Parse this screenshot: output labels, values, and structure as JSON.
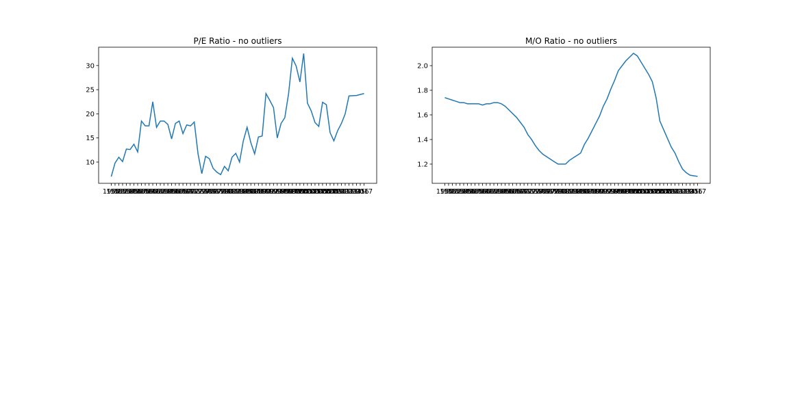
{
  "chart_data": [
    {
      "type": "line",
      "title": "P/E Ratio - no outliers",
      "color": "#1f77b4",
      "categories": [
        "1950",
        "1951",
        "1952",
        "1953",
        "1954",
        "1955",
        "1956",
        "1957",
        "1958",
        "1959",
        "1960",
        "1961",
        "1962",
        "1963",
        "1964",
        "1965",
        "1966",
        "1967",
        "1968",
        "1969",
        "1970",
        "1971",
        "1972",
        "1973",
        "1974",
        "1975",
        "1976",
        "1977",
        "1978",
        "1979",
        "1980",
        "1981",
        "1982",
        "1983",
        "1984",
        "1985",
        "1986",
        "1987",
        "1988",
        "1989",
        "1990",
        "1991",
        "1992",
        "1993",
        "1994",
        "1995",
        "1996",
        "1997",
        "1998",
        "1999",
        "2000",
        "2001",
        "2002",
        "2003",
        "2004",
        "2005",
        "2006",
        "2007",
        "2008",
        "2009",
        "2010",
        "2011",
        "2012",
        "2013",
        "2014",
        "2015",
        "2016",
        "2017"
      ],
      "values": [
        7.0,
        9.8,
        11.0,
        10.1,
        12.7,
        12.6,
        13.7,
        12.1,
        18.5,
        17.5,
        17.5,
        22.5,
        17.2,
        18.5,
        18.5,
        17.8,
        14.8,
        18.0,
        18.5,
        15.9,
        17.7,
        17.5,
        18.3,
        11.7,
        7.6,
        11.2,
        10.7,
        8.7,
        7.9,
        7.4,
        9.1,
        8.2,
        11.0,
        11.8,
        10.0,
        14.4,
        17.2,
        14.0,
        11.7,
        15.2,
        15.4,
        24.2,
        22.8,
        21.3,
        15.0,
        18.0,
        19.2,
        24.2,
        31.5,
        29.9,
        26.6,
        32.5,
        22.2,
        20.6,
        18.2,
        17.4,
        22.4,
        21.9,
        16.1,
        14.4,
        16.5,
        18.0,
        20.0,
        23.7,
        23.75,
        23.8,
        24.0,
        24.2
      ],
      "ylim": [
        5.6,
        33.8
      ],
      "yticks": [
        10,
        15,
        20,
        25,
        30
      ]
    },
    {
      "type": "line",
      "title": "M/O Ratio - no outliers",
      "color": "#1f77b4",
      "categories": [
        "1950",
        "1951",
        "1952",
        "1953",
        "1954",
        "1955",
        "1956",
        "1957",
        "1958",
        "1959",
        "1960",
        "1961",
        "1962",
        "1963",
        "1964",
        "1965",
        "1966",
        "1967",
        "1968",
        "1969",
        "1970",
        "1971",
        "1972",
        "1973",
        "1974",
        "1975",
        "1976",
        "1977",
        "1978",
        "1979",
        "1980",
        "1981",
        "1982",
        "1983",
        "1984",
        "1985",
        "1986",
        "1987",
        "1988",
        "1989",
        "1990",
        "1991",
        "1992",
        "1993",
        "1994",
        "1995",
        "1996",
        "1997",
        "1998",
        "1999",
        "2000",
        "2001",
        "2002",
        "2003",
        "2004",
        "2005",
        "2006",
        "2007",
        "2008",
        "2009",
        "2010",
        "2011",
        "2012",
        "2013",
        "2014",
        "2015",
        "2016",
        "2017"
      ],
      "values": [
        1.74,
        1.73,
        1.72,
        1.71,
        1.7,
        1.7,
        1.69,
        1.69,
        1.69,
        1.69,
        1.68,
        1.69,
        1.69,
        1.7,
        1.7,
        1.69,
        1.67,
        1.64,
        1.61,
        1.58,
        1.54,
        1.5,
        1.44,
        1.4,
        1.35,
        1.31,
        1.28,
        1.26,
        1.24,
        1.22,
        1.2,
        1.2,
        1.2,
        1.23,
        1.25,
        1.27,
        1.29,
        1.36,
        1.41,
        1.47,
        1.53,
        1.59,
        1.67,
        1.73,
        1.81,
        1.88,
        1.96,
        2.0,
        2.04,
        2.07,
        2.1,
        2.08,
        2.03,
        1.98,
        1.93,
        1.87,
        1.74,
        1.55,
        1.48,
        1.41,
        1.34,
        1.29,
        1.22,
        1.16,
        1.13,
        1.11,
        1.105,
        1.1
      ],
      "ylim": [
        1.044,
        2.15
      ],
      "yticks": [
        {
          "value": 1.2,
          "label": "1.2"
        },
        {
          "value": 1.4,
          "label": "1.4"
        },
        {
          "value": 1.6,
          "label": "1.6"
        },
        {
          "value": 1.8,
          "label": "1.8"
        },
        {
          "value": 2,
          "label": "2.0"
        }
      ]
    }
  ]
}
